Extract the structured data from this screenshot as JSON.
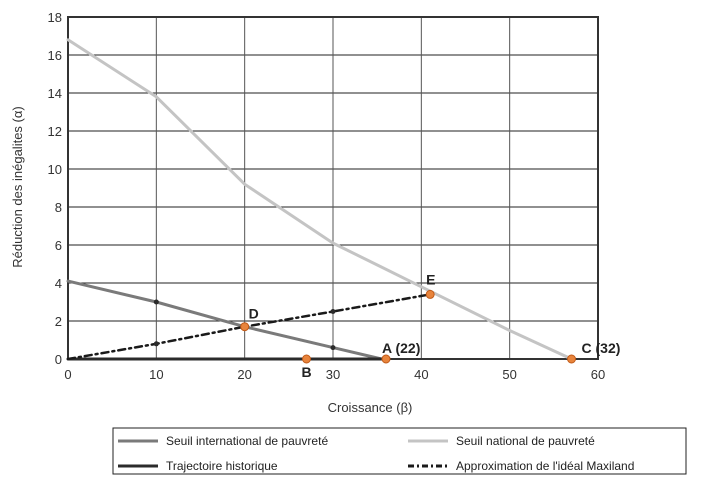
{
  "chart_data": {
    "type": "line",
    "title": "",
    "xlabel": "Croissance (β)",
    "ylabel": "Réduction des inégalites (α)",
    "xlim": [
      0,
      60
    ],
    "ylim": [
      0,
      18
    ],
    "x_ticks": [
      0,
      10,
      20,
      30,
      40,
      50,
      60
    ],
    "y_ticks": [
      0,
      2,
      4,
      6,
      8,
      10,
      12,
      14,
      16,
      18
    ],
    "grid": true,
    "legend_position": "bottom",
    "series": [
      {
        "name": "Seuil international de pauvreté",
        "color": "#7a7a7a",
        "style": "solid",
        "x": [
          0,
          10,
          20,
          30,
          35.5
        ],
        "y": [
          4.1,
          3,
          1.7,
          0.6,
          0
        ]
      },
      {
        "name": "Seuil national de pauvreté",
        "color": "#c4c4c4",
        "style": "solid",
        "x": [
          0,
          10,
          20,
          30,
          40,
          50,
          57
        ],
        "y": [
          16.8,
          13.8,
          9.2,
          6.1,
          3.8,
          1.5,
          0
        ]
      },
      {
        "name": "Trajectoire historique",
        "color": "#2b2b2b",
        "style": "solid",
        "x": [
          0,
          36
        ],
        "y": [
          0,
          0
        ]
      },
      {
        "name": "Approximation de l'idéal Maxiland",
        "color": "#1a1a1a",
        "style": "dashed",
        "x": [
          0,
          10,
          20,
          30,
          41
        ],
        "y": [
          0,
          0.8,
          1.7,
          2.5,
          3.4
        ]
      }
    ],
    "points": [
      {
        "label": "A (22)",
        "x": 36,
        "y": 0
      },
      {
        "label": "B",
        "x": 27,
        "y": 0
      },
      {
        "label": "C (32)",
        "x": 57,
        "y": 0
      },
      {
        "label": "D",
        "x": 20,
        "y": 1.7
      },
      {
        "label": "E",
        "x": 41,
        "y": 3.4
      }
    ],
    "point_color": "#e8843c"
  }
}
